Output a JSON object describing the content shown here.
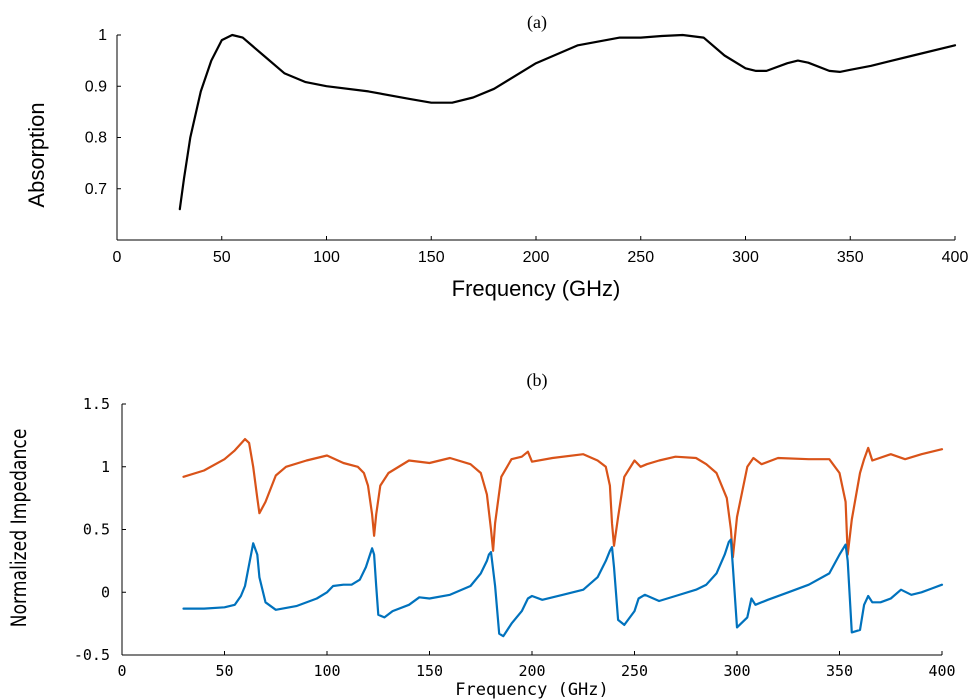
{
  "chart_data": [
    {
      "type": "line",
      "title": "(a)",
      "xlabel": "Frequency (GHz)",
      "ylabel": "Absorption",
      "xlim": [
        0,
        400
      ],
      "ylim": [
        0.6,
        1.0
      ],
      "xticks": [
        0,
        50,
        100,
        150,
        200,
        250,
        300,
        350,
        400
      ],
      "yticks": [
        0.7,
        0.8,
        0.9,
        1
      ],
      "ytick_labels": [
        "0.7",
        "0.8",
        "0.9",
        "1"
      ],
      "grid": false,
      "series": [
        {
          "color": "#000000",
          "x": [
            30,
            32,
            35,
            40,
            45,
            50,
            55,
            60,
            70,
            80,
            90,
            100,
            120,
            140,
            150,
            160,
            170,
            180,
            200,
            220,
            240,
            250,
            260,
            270,
            280,
            290,
            300,
            305,
            310,
            320,
            325,
            330,
            340,
            345,
            350,
            360,
            380,
            400
          ],
          "y": [
            0.66,
            0.72,
            0.8,
            0.89,
            0.95,
            0.99,
            1.0,
            0.995,
            0.96,
            0.925,
            0.908,
            0.9,
            0.89,
            0.875,
            0.868,
            0.868,
            0.878,
            0.895,
            0.945,
            0.98,
            0.995,
            0.995,
            0.998,
            1.0,
            0.995,
            0.96,
            0.935,
            0.93,
            0.93,
            0.945,
            0.95,
            0.946,
            0.93,
            0.928,
            0.932,
            0.94,
            0.96,
            0.98
          ]
        }
      ]
    },
    {
      "type": "line",
      "title": "(b)",
      "xlabel": "Frequency (GHz)",
      "ylabel": "Normalized Impedance",
      "xlim": [
        0,
        400
      ],
      "ylim": [
        -0.5,
        1.5
      ],
      "xticks": [
        0,
        50,
        100,
        150,
        200,
        250,
        300,
        350,
        400
      ],
      "yticks": [
        -0.5,
        0,
        0.5,
        1,
        1.5
      ],
      "ytick_labels": [
        "-0.5",
        "0",
        "0.5",
        "1",
        "1.5"
      ],
      "grid": false,
      "series": [
        {
          "color": "#D95319",
          "x": [
            30,
            40,
            50,
            55,
            60,
            62,
            64,
            66,
            67,
            70,
            75,
            80,
            90,
            100,
            104,
            108,
            115,
            118,
            120,
            122,
            123,
            124,
            126,
            130,
            140,
            150,
            160,
            170,
            175,
            178,
            180,
            181,
            182,
            185,
            190,
            195,
            198,
            200,
            210,
            225,
            232,
            236,
            238,
            239,
            240,
            242,
            245,
            250,
            253,
            256,
            262,
            270,
            280,
            285,
            290,
            295,
            297,
            298,
            300,
            305,
            308,
            312,
            320,
            335,
            345,
            350,
            353,
            354,
            356,
            360,
            362,
            364,
            366,
            375,
            382,
            390,
            400
          ],
          "y": [
            0.92,
            0.97,
            1.06,
            1.13,
            1.22,
            1.19,
            1.0,
            0.75,
            0.63,
            0.72,
            0.93,
            1.0,
            1.05,
            1.09,
            1.06,
            1.03,
            1.0,
            0.95,
            0.85,
            0.62,
            0.45,
            0.62,
            0.85,
            0.95,
            1.05,
            1.03,
            1.07,
            1.02,
            0.95,
            0.78,
            0.5,
            0.33,
            0.55,
            0.92,
            1.06,
            1.08,
            1.12,
            1.04,
            1.07,
            1.1,
            1.05,
            1.0,
            0.85,
            0.55,
            0.37,
            0.6,
            0.92,
            1.05,
            1.0,
            1.02,
            1.05,
            1.08,
            1.07,
            1.02,
            0.95,
            0.75,
            0.5,
            0.28,
            0.6,
            1.0,
            1.07,
            1.02,
            1.07,
            1.06,
            1.06,
            0.95,
            0.72,
            0.3,
            0.58,
            0.95,
            1.06,
            1.15,
            1.05,
            1.1,
            1.06,
            1.1,
            1.14
          ]
        },
        {
          "color": "#0072BD",
          "x": [
            30,
            40,
            50,
            55,
            58,
            60,
            62,
            64,
            66,
            67,
            70,
            75,
            85,
            95,
            100,
            103,
            108,
            112,
            116,
            119,
            121,
            122,
            123,
            124,
            125,
            128,
            132,
            140,
            145,
            150,
            160,
            170,
            175,
            178,
            179,
            180,
            182,
            184,
            186,
            190,
            195,
            198,
            200,
            205,
            215,
            225,
            232,
            236,
            238,
            239,
            240,
            242,
            245,
            250,
            252,
            255,
            262,
            270,
            280,
            285,
            290,
            294,
            296,
            297,
            298,
            300,
            305,
            307,
            309,
            315,
            325,
            335,
            345,
            350,
            353,
            354,
            356,
            360,
            362,
            364,
            366,
            370,
            375,
            380,
            385,
            390,
            395,
            400
          ],
          "y": [
            -0.13,
            -0.13,
            -0.12,
            -0.1,
            -0.03,
            0.05,
            0.22,
            0.39,
            0.3,
            0.12,
            -0.08,
            -0.14,
            -0.11,
            -0.05,
            0.0,
            0.05,
            0.06,
            0.06,
            0.1,
            0.2,
            0.3,
            0.35,
            0.3,
            0.05,
            -0.18,
            -0.2,
            -0.15,
            -0.1,
            -0.04,
            -0.05,
            -0.02,
            0.05,
            0.15,
            0.25,
            0.3,
            0.32,
            0.05,
            -0.33,
            -0.35,
            -0.25,
            -0.15,
            -0.05,
            -0.03,
            -0.06,
            -0.02,
            0.02,
            0.12,
            0.25,
            0.33,
            0.36,
            0.2,
            -0.22,
            -0.26,
            -0.15,
            -0.05,
            -0.02,
            -0.07,
            -0.03,
            0.02,
            0.06,
            0.15,
            0.3,
            0.4,
            0.42,
            0.2,
            -0.28,
            -0.2,
            -0.05,
            -0.1,
            -0.06,
            0.0,
            0.06,
            0.15,
            0.3,
            0.38,
            0.25,
            -0.32,
            -0.3,
            -0.1,
            -0.03,
            -0.08,
            -0.08,
            -0.05,
            0.02,
            -0.02,
            0.0,
            0.03,
            0.06
          ]
        }
      ]
    }
  ]
}
